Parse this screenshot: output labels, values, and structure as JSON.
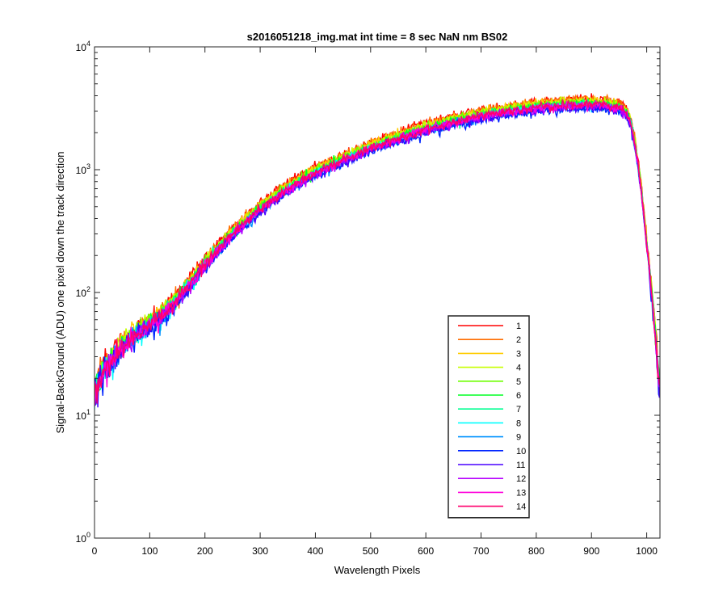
{
  "chart_data": {
    "type": "line",
    "title": "s2016051218_img.mat int time = 8 sec  NaN nm BS02",
    "xlabel": "Wavelength Pixels",
    "ylabel": "Signal-BackGround (ADU) one pixel down the track direction",
    "xlim": [
      0,
      1024
    ],
    "ylim": [
      1,
      10000
    ],
    "yscale": "log",
    "grid": false,
    "legend_position": "lower-right",
    "x_ticks": [
      {
        "value": 0,
        "label": "0"
      },
      {
        "value": 100,
        "label": "100"
      },
      {
        "value": 200,
        "label": "200"
      },
      {
        "value": 300,
        "label": "300"
      },
      {
        "value": 400,
        "label": "400"
      },
      {
        "value": 500,
        "label": "500"
      },
      {
        "value": 600,
        "label": "600"
      },
      {
        "value": 700,
        "label": "700"
      },
      {
        "value": 800,
        "label": "800"
      },
      {
        "value": 900,
        "label": "900"
      },
      {
        "value": 1000,
        "label": "1000"
      }
    ],
    "y_ticks": [
      {
        "value": 1,
        "base": "10",
        "exp": "0"
      },
      {
        "value": 10,
        "base": "10",
        "exp": "1"
      },
      {
        "value": 100,
        "base": "10",
        "exp": "2"
      },
      {
        "value": 1000,
        "base": "10",
        "exp": "3"
      },
      {
        "value": 10000,
        "base": "10",
        "exp": "4"
      }
    ],
    "profile": {
      "x": [
        0,
        10,
        20,
        40,
        60,
        80,
        100,
        130,
        160,
        200,
        250,
        300,
        350,
        400,
        450,
        500,
        550,
        600,
        650,
        700,
        750,
        800,
        850,
        880,
        920,
        950,
        960,
        970,
        980,
        990,
        1000,
        1010,
        1015,
        1020,
        1024
      ],
      "y": [
        15,
        20,
        25,
        32,
        40,
        48,
        55,
        70,
        100,
        170,
        300,
        480,
        700,
        950,
        1200,
        1500,
        1800,
        2150,
        2450,
        2750,
        3000,
        3200,
        3350,
        3400,
        3350,
        3200,
        3000,
        2500,
        1500,
        700,
        250,
        90,
        50,
        25,
        15
      ]
    },
    "series": [
      {
        "name": "1",
        "color": "#ff0000",
        "scale": 1.12
      },
      {
        "name": "2",
        "color": "#ff6d00",
        "scale": 1.1
      },
      {
        "name": "3",
        "color": "#ffcc00",
        "scale": 1.08
      },
      {
        "name": "4",
        "color": "#c8ff00",
        "scale": 1.06
      },
      {
        "name": "5",
        "color": "#6dff00",
        "scale": 1.04
      },
      {
        "name": "6",
        "color": "#00ff24",
        "scale": 1.02
      },
      {
        "name": "7",
        "color": "#00ff92",
        "scale": 1.0
      },
      {
        "name": "8",
        "color": "#00ffff",
        "scale": 0.98
      },
      {
        "name": "9",
        "color": "#0092ff",
        "scale": 0.96
      },
      {
        "name": "10",
        "color": "#0024ff",
        "scale": 0.93
      },
      {
        "name": "11",
        "color": "#4900ff",
        "scale": 0.95
      },
      {
        "name": "12",
        "color": "#b600ff",
        "scale": 0.97
      },
      {
        "name": "13",
        "color": "#ff00db",
        "scale": 0.99
      },
      {
        "name": "14",
        "color": "#ff006d",
        "scale": 1.0
      }
    ]
  }
}
